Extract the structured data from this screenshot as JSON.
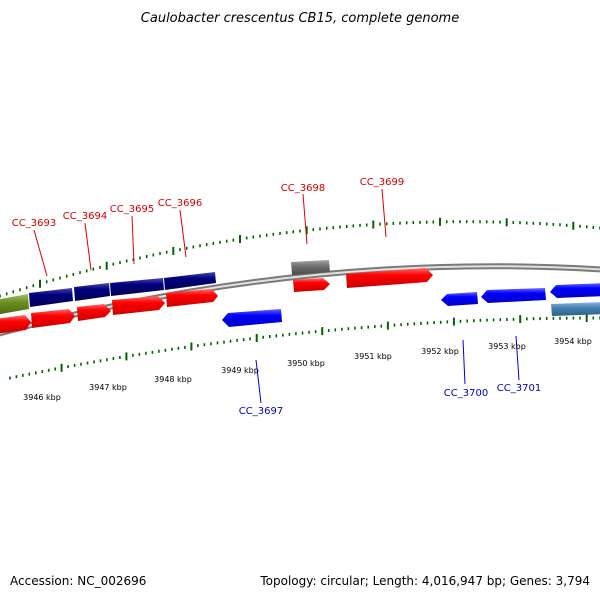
{
  "title": "Caulobacter crescentus CB15, complete genome",
  "footer": {
    "accession": "Accession: NC_002696",
    "summary": "Topology: circular; Length: 4,016,947 bp; Genes: 3,794"
  },
  "colors": {
    "forward_cds": "#ff0000",
    "reverse_cds": "#0000ff",
    "operon": "#000080",
    "green_feature": "#6b8e23",
    "grey_feature": "#707070",
    "steelblue_feature": "#4682b4",
    "tick": "#006400",
    "backbone": "#8c8c8c",
    "forward_label": "#d40000",
    "reverse_label": "#0000c0"
  },
  "position_labels": [
    "3946 kbp",
    "3947 kbp",
    "3948 kbp",
    "3949 kbp",
    "3950 kbp",
    "3951 kbp",
    "3952 kbp",
    "3953 kbp",
    "3954 kbp"
  ],
  "forward_gene_labels": [
    "CC_3693",
    "CC_3694",
    "CC_3695",
    "CC_3696",
    "CC_3698",
    "CC_3699"
  ],
  "reverse_gene_labels": [
    "CC_3697",
    "CC_3700",
    "CC_3701"
  ]
}
